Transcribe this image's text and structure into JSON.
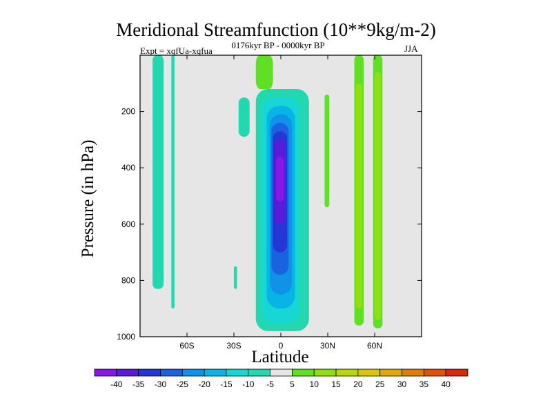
{
  "chart_data": {
    "type": "heatmap",
    "title": "Meridional Streamfunction (10**9kg/m-2)",
    "subtitle": "0176kyr BP - 0000kyr BP",
    "experiment": "Expt = xqfUa-xqfua",
    "season": "JJA",
    "xlabel": "Latitude",
    "ylabel": "Pressure (in hPa)",
    "x_range": [
      -90,
      90
    ],
    "y_range": [
      1000,
      0
    ],
    "x_ticks": [
      {
        "value": -60,
        "label": "60S"
      },
      {
        "value": -30,
        "label": "30S"
      },
      {
        "value": 0,
        "label": "0"
      },
      {
        "value": 30,
        "label": "30N"
      },
      {
        "value": 60,
        "label": "60N"
      }
    ],
    "y_ticks": [
      200,
      400,
      600,
      800,
      1000
    ],
    "levels": [
      {
        "label": "-40",
        "color": "#8a16e6"
      },
      {
        "label": "-35",
        "color": "#5a1bd8"
      },
      {
        "label": "-30",
        "color": "#2436d6"
      },
      {
        "label": "-25",
        "color": "#1b62e0"
      },
      {
        "label": "-20",
        "color": "#0f92e8"
      },
      {
        "label": "-15",
        "color": "#08b4e6"
      },
      {
        "label": "-10",
        "color": "#17d6d6"
      },
      {
        "label": "-5",
        "color": "#22d8b0"
      },
      {
        "label": "5",
        "color": "#e6e6e6"
      },
      {
        "label": "10",
        "color": "#60e022"
      },
      {
        "label": "15",
        "color": "#90e010"
      },
      {
        "label": "20",
        "color": "#b8d80c"
      },
      {
        "label": "25",
        "color": "#d8c808"
      },
      {
        "label": "30",
        "color": "#e0a808"
      },
      {
        "label": "35",
        "color": "#e07c08"
      },
      {
        "label": "40",
        "color": "#e05206"
      },
      {
        "label": "",
        "color": "#d82808"
      }
    ],
    "regions": [
      {
        "name": "band-70s",
        "value": -7.5,
        "color": "#22d8b0",
        "lat": [
          -82,
          -75
        ],
        "p": [
          0,
          830
        ]
      },
      {
        "name": "band-66s",
        "value": -7.5,
        "color": "#22d8b0",
        "lat": [
          -70,
          -68
        ],
        "p": [
          0,
          900
        ]
      },
      {
        "name": "blob-28s",
        "value": -7.5,
        "color": "#22d8b0",
        "lat": [
          -27,
          -20
        ],
        "p": [
          150,
          290
        ]
      },
      {
        "name": "blob-30s-low",
        "value": -7.5,
        "color": "#22d8b0",
        "lat": [
          -30,
          -28
        ],
        "p": [
          750,
          830
        ]
      },
      {
        "name": "hadley-outer",
        "value": -7.5,
        "color": "#22d8b0",
        "lat": [
          -16,
          18
        ],
        "p": [
          120,
          980
        ]
      },
      {
        "name": "hadley-m10",
        "value": -12.5,
        "color": "#17d6d6",
        "lat": [
          -12,
          12
        ],
        "p": [
          150,
          950
        ]
      },
      {
        "name": "hadley-m15",
        "value": -17.5,
        "color": "#08b4e6",
        "lat": [
          -9,
          9
        ],
        "p": [
          180,
          900
        ]
      },
      {
        "name": "hadley-m20",
        "value": -22.5,
        "color": "#0f92e8",
        "lat": [
          -7,
          7
        ],
        "p": [
          210,
          850
        ]
      },
      {
        "name": "hadley-m25",
        "value": -27.5,
        "color": "#1b62e0",
        "lat": [
          -6,
          5
        ],
        "p": [
          240,
          780
        ]
      },
      {
        "name": "hadley-m30",
        "value": -32.5,
        "color": "#2436d6",
        "lat": [
          -5,
          4
        ],
        "p": [
          270,
          700
        ]
      },
      {
        "name": "hadley-m35",
        "value": -37.5,
        "color": "#5a1bd8",
        "lat": [
          -4,
          3
        ],
        "p": [
          300,
          600
        ]
      },
      {
        "name": "hadley-core",
        "value": -42.5,
        "color": "#8a16e6",
        "lat": [
          -3,
          2
        ],
        "p": [
          360,
          520
        ]
      },
      {
        "name": "green-upper-20s",
        "value": 7.5,
        "color": "#60e022",
        "lat": [
          -16,
          -5
        ],
        "p": [
          0,
          120
        ]
      },
      {
        "name": "green-30n",
        "value": 7.5,
        "color": "#60e022",
        "lat": [
          28,
          31
        ],
        "p": [
          140,
          540
        ]
      },
      {
        "name": "band-50n",
        "value": 7.5,
        "color": "#60e022",
        "lat": [
          47,
          53
        ],
        "p": [
          0,
          960
        ]
      },
      {
        "name": "band-50n-inner",
        "value": 12.5,
        "color": "#90e010",
        "lat": [
          48,
          52
        ],
        "p": [
          100,
          900
        ]
      },
      {
        "name": "band-62n",
        "value": 7.5,
        "color": "#60e022",
        "lat": [
          59,
          65
        ],
        "p": [
          0,
          970
        ]
      },
      {
        "name": "band-62n-inner",
        "value": 12.5,
        "color": "#90e010",
        "lat": [
          60,
          64
        ],
        "p": [
          60,
          940
        ]
      }
    ]
  }
}
